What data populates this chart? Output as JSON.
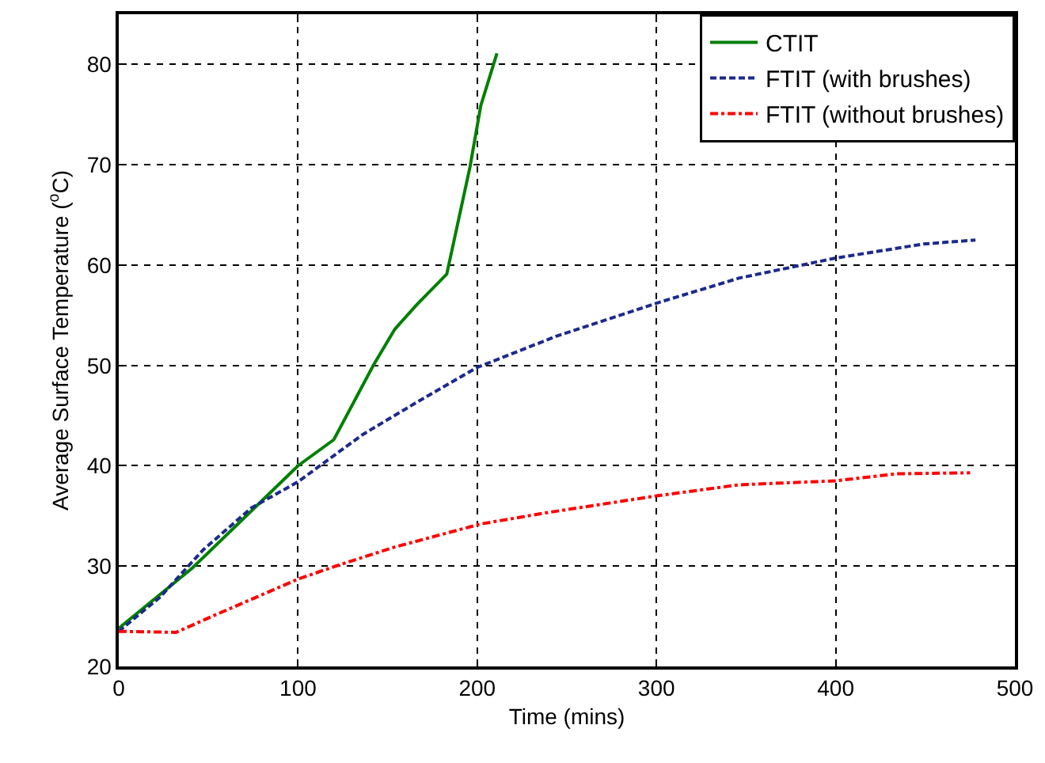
{
  "chart_data": {
    "type": "line",
    "xlabel": "Time (mins)",
    "ylabel": "Average Surface Temperature ($^{o}$C)",
    "xlim": [
      0,
      500
    ],
    "xticks": [
      0,
      100,
      200,
      300,
      400,
      500
    ],
    "ylim": [
      20,
      85
    ],
    "yticks": [
      20,
      30,
      40,
      50,
      60,
      70,
      80
    ],
    "grid": true,
    "legend": "top right",
    "marker": "none",
    "series": [
      {
        "name": "CTIT",
        "color": "#008000",
        "line_style": "solid",
        "x": [
          0,
          41,
          74,
          100,
          120,
          142,
          154,
          166,
          183,
          196,
          202,
          211
        ],
        "values": [
          23.8,
          29.8,
          35.5,
          40,
          42.6,
          50,
          53.6,
          56,
          59.1,
          69.8,
          75.9,
          81.1
        ]
      },
      {
        "name": "FTIT (with brushes)",
        "color": "#1c2a8c",
        "line_style": "dashed",
        "x": [
          0,
          23,
          47,
          74,
          100,
          136,
          166,
          200,
          244,
          300,
          346,
          400,
          449,
          478
        ],
        "values": [
          23.5,
          26.9,
          31.6,
          35.8,
          38.4,
          43.1,
          46.3,
          49.8,
          52.9,
          56.2,
          58.7,
          60.7,
          62.1,
          62.5
        ]
      },
      {
        "name": "FTIT (without brushes)",
        "color": "#ff0000",
        "line_style": "dashdot",
        "x": [
          0,
          32,
          56,
          100,
          121,
          154,
          202,
          238,
          300,
          346,
          400,
          434,
          475
        ],
        "values": [
          23.5,
          23.4,
          25.3,
          28.7,
          30,
          31.9,
          34.2,
          35.3,
          37,
          38.1,
          38.5,
          39.2,
          39.3
        ]
      }
    ]
  }
}
